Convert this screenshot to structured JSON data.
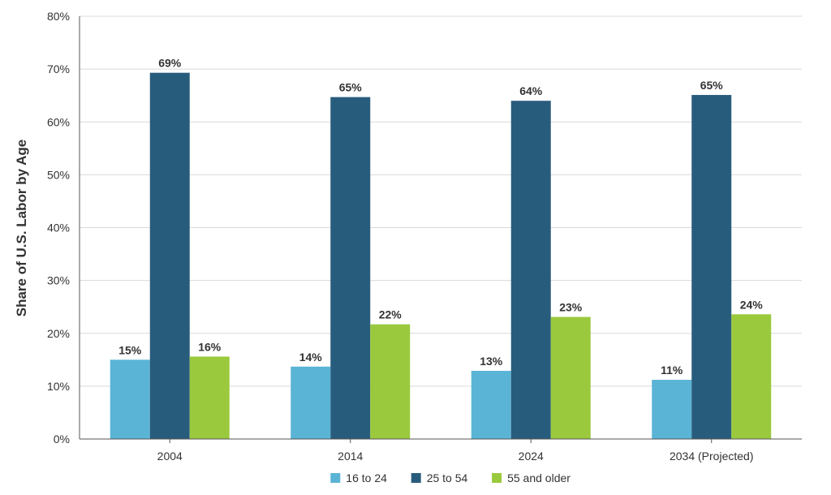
{
  "chart_data": {
    "type": "bar",
    "categories": [
      "2004",
      "2014",
      "2024",
      "2034 (Projected)"
    ],
    "series": [
      {
        "name": "16 to 24",
        "color": "#5ab4d6",
        "values": [
          15,
          13.7,
          12.9,
          11.2
        ],
        "labels": [
          "15%",
          "14%",
          "13%",
          "11%"
        ]
      },
      {
        "name": "25 to 54",
        "color": "#285c7c",
        "values": [
          69.3,
          64.7,
          64,
          65.1
        ],
        "labels": [
          "69%",
          "65%",
          "64%",
          "65%"
        ]
      },
      {
        "name": "55 and older",
        "color": "#9ac93e",
        "values": [
          15.6,
          21.7,
          23.1,
          23.6
        ],
        "labels": [
          "16%",
          "22%",
          "23%",
          "24%"
        ]
      }
    ],
    "ylabel": "Share of U.S. Labor by Age",
    "xlabel": "",
    "ylim": [
      0,
      80
    ],
    "yticks": [
      0,
      10,
      20,
      30,
      40,
      50,
      60,
      70,
      80
    ],
    "ytick_labels": [
      "0%",
      "10%",
      "20%",
      "30%",
      "40%",
      "50%",
      "60%",
      "70%",
      "80%"
    ],
    "grid": true,
    "legend_position": "bottom"
  }
}
